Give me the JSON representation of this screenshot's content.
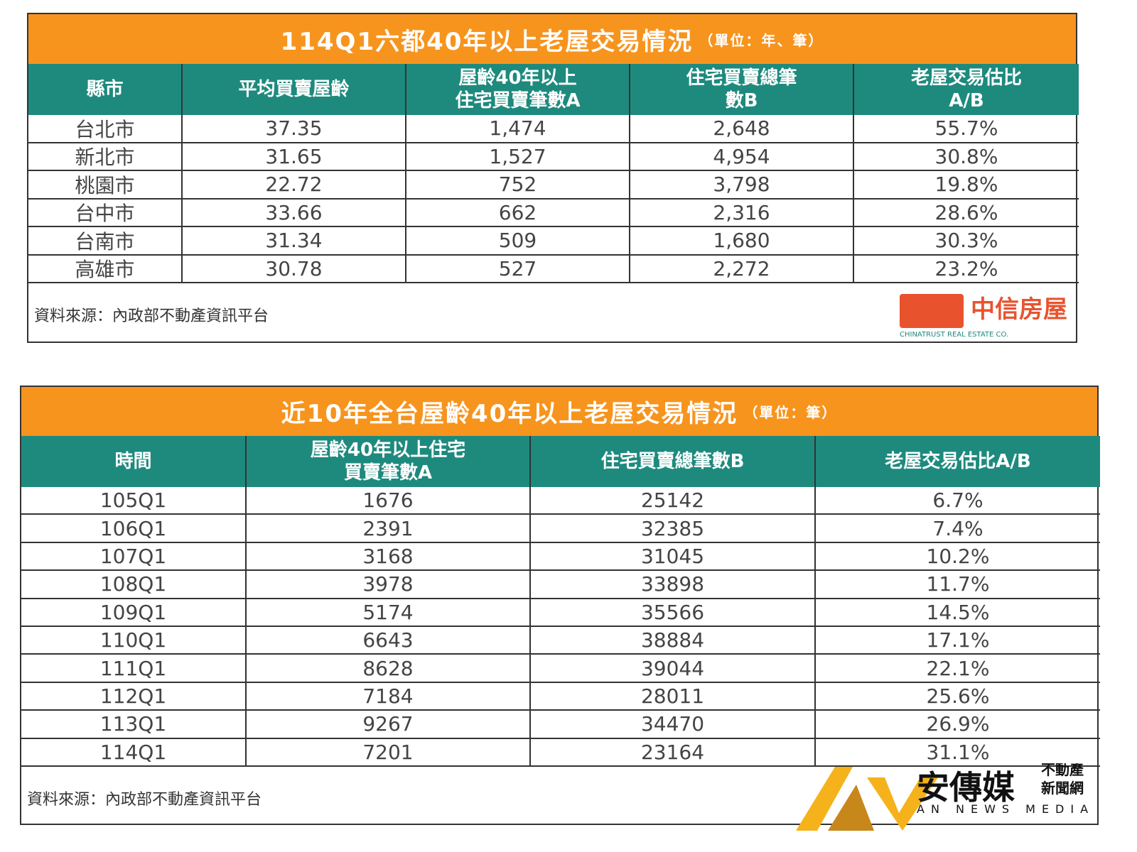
{
  "tables": [
    {
      "title": "114Q1六都40年以上老屋交易情況",
      "unit": "（單位：年、筆）",
      "headers": [
        [
          "縣市"
        ],
        [
          "平均買賣屋齡"
        ],
        [
          "屋齡40年以上",
          "住宅買賣筆數A"
        ],
        [
          "住宅買賣總筆",
          "數B"
        ],
        [
          "老屋交易估比",
          "A/B"
        ]
      ],
      "rows": [
        [
          "台北市",
          "37.35",
          "1,474",
          "2,648",
          "55.7%"
        ],
        [
          "新北市",
          "31.65",
          "1,527",
          "4,954",
          "30.8%"
        ],
        [
          "桃園市",
          "22.72",
          "752",
          "3,798",
          "19.8%"
        ],
        [
          "台中市",
          "33.66",
          "662",
          "2,316",
          "28.6%"
        ],
        [
          "台南市",
          "31.34",
          "509",
          "1,680",
          "30.3%"
        ],
        [
          "高雄市",
          "30.78",
          "527",
          "2,272",
          "23.2%"
        ]
      ],
      "source": "資料來源：內政部不動產資訊平台"
    },
    {
      "title": "近10年全台屋齡40年以上老屋交易情況",
      "unit": "（單位：筆）",
      "headers": [
        [
          "時間"
        ],
        [
          "屋齡40年以上住宅",
          "買賣筆數A"
        ],
        [
          "住宅買賣總筆數B"
        ],
        [
          "老屋交易估比A/B"
        ]
      ],
      "rows": [
        [
          "105Q1",
          "1676",
          "25142",
          "6.7%"
        ],
        [
          "106Q1",
          "2391",
          "32385",
          "7.4%"
        ],
        [
          "107Q1",
          "3168",
          "31045",
          "10.2%"
        ],
        [
          "108Q1",
          "3978",
          "33898",
          "11.7%"
        ],
        [
          "109Q1",
          "5174",
          "35566",
          "14.5%"
        ],
        [
          "110Q1",
          "6643",
          "38884",
          "17.1%"
        ],
        [
          "111Q1",
          "8628",
          "39044",
          "22.1%"
        ],
        [
          "112Q1",
          "7184",
          "28011",
          "25.6%"
        ],
        [
          "113Q1",
          "9267",
          "34470",
          "26.9%"
        ],
        [
          "114Q1",
          "7201",
          "23164",
          "31.1%"
        ]
      ],
      "source": "資料來源：內政部不動產資訊平台"
    }
  ],
  "logo": {
    "name": "中信房屋",
    "english": "CHINATRUST REAL ESTATE CO."
  },
  "watermark": {
    "name": "安傳媒",
    "line1": "不動產",
    "line2": "新聞網",
    "english": "AN NEWS MEDIA"
  }
}
